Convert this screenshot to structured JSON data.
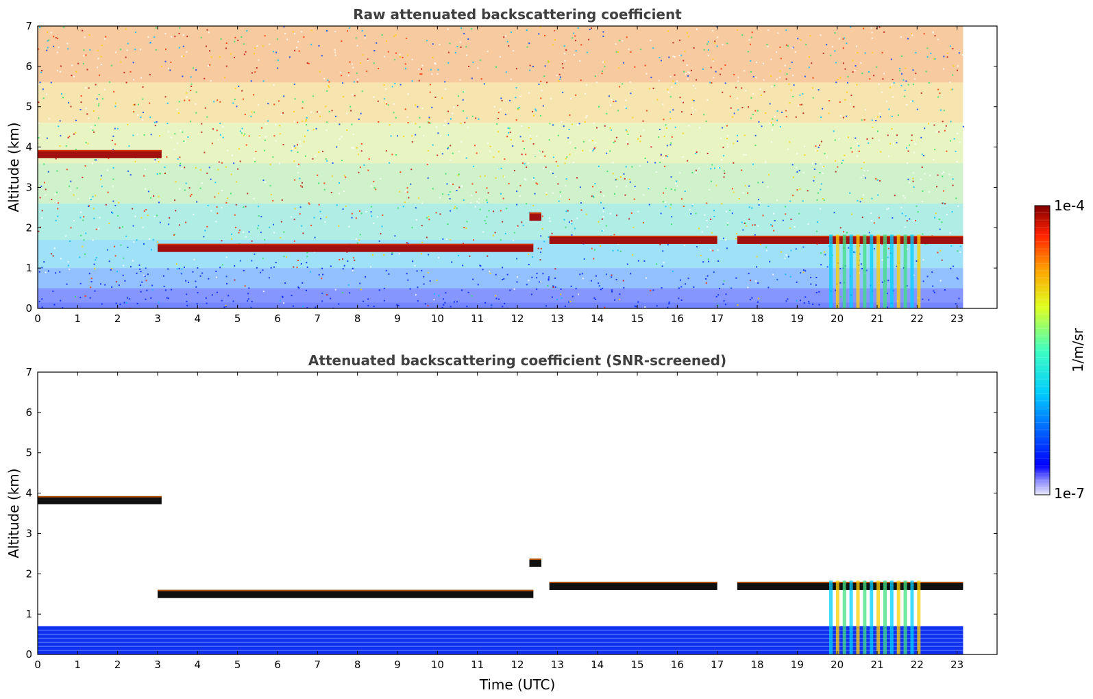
{
  "chart_data": [
    {
      "type": "heatmap",
      "title": "Raw attenuated backscattering coefficient",
      "ylabel": "Altitude (km)",
      "xlabel": "",
      "xlim": [
        0,
        24
      ],
      "ylim": [
        0,
        7
      ],
      "x_ticks": [
        "0",
        "1",
        "2",
        "3",
        "4",
        "5",
        "6",
        "7",
        "8",
        "9",
        "10",
        "11",
        "12",
        "13",
        "14",
        "15",
        "16",
        "17",
        "18",
        "19",
        "20",
        "21",
        "22",
        "23"
      ],
      "y_ticks": [
        "0",
        "1",
        "2",
        "3",
        "4",
        "5",
        "6",
        "7"
      ],
      "data_x_range": [
        0,
        23.15
      ],
      "screened": false,
      "layers": [
        {
          "name": "cloud-layer-1",
          "x": [
            0,
            3.1
          ],
          "y": [
            3.7,
            3.95
          ]
        },
        {
          "name": "cloud-layer-2",
          "x": [
            3.0,
            12.4
          ],
          "y": [
            1.3,
            1.7
          ]
        },
        {
          "name": "cloud-layer-3",
          "x": [
            12.3,
            12.6
          ],
          "y": [
            2.2,
            2.35
          ]
        },
        {
          "name": "cloud-layer-4",
          "x": [
            12.8,
            17.0
          ],
          "y": [
            1.5,
            1.9
          ]
        },
        {
          "name": "cloud-layer-5",
          "x": [
            17.5,
            23.15
          ],
          "y": [
            1.2,
            2.2
          ]
        },
        {
          "name": "precipitation",
          "x": [
            19.8,
            22.0
          ],
          "y": [
            0,
            2.0
          ]
        }
      ]
    },
    {
      "type": "heatmap",
      "title": "Attenuated backscattering coefficient (SNR-screened)",
      "ylabel": "Altitude (km)",
      "xlabel": "Time (UTC)",
      "xlim": [
        0,
        24
      ],
      "ylim": [
        0,
        7
      ],
      "x_ticks": [
        "0",
        "1",
        "2",
        "3",
        "4",
        "5",
        "6",
        "7",
        "8",
        "9",
        "10",
        "11",
        "12",
        "13",
        "14",
        "15",
        "16",
        "17",
        "18",
        "19",
        "20",
        "21",
        "22",
        "23"
      ],
      "y_ticks": [
        "0",
        "1",
        "2",
        "3",
        "4",
        "5",
        "6",
        "7"
      ],
      "data_x_range": [
        0,
        23.15
      ],
      "screened": true,
      "boundary_layer_top": 0.7
    }
  ],
  "colorbar": {
    "colormap": "jet",
    "scale": "log",
    "max_label": "1e-4",
    "min_label": "1e-7",
    "unit_label": "1/m/sr"
  }
}
